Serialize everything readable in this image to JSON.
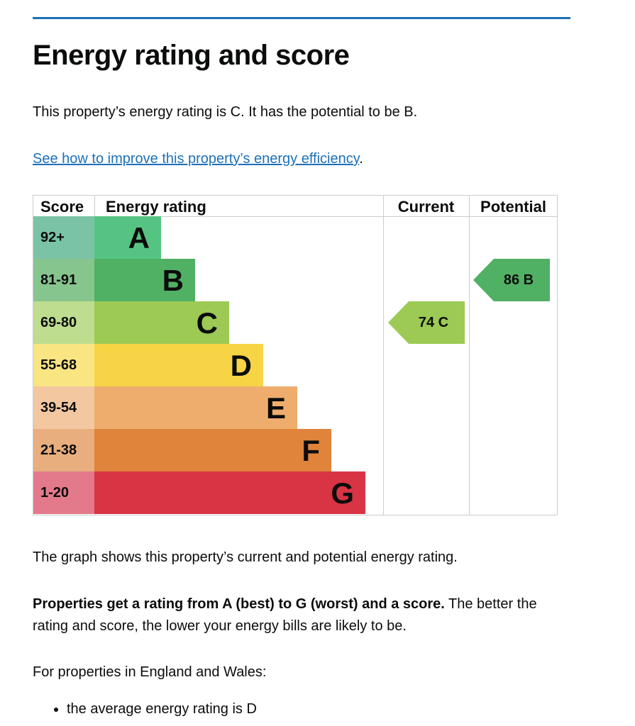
{
  "title": "Energy rating and score",
  "intro": "This property’s energy rating is C. It has the potential to be B.",
  "link_text": "See how to improve this property’s energy efficiency",
  "link_suffix": ".",
  "graph": {
    "headers": {
      "score": "Score",
      "rating": "Energy rating",
      "current": "Current",
      "potential": "Potential"
    },
    "bands": [
      {
        "letter": "A",
        "score": "92+",
        "color": "#55c483",
        "score_bg": "#7ac3a6"
      },
      {
        "letter": "B",
        "score": "81-91",
        "color": "#50b063",
        "score_bg": "#86c58e"
      },
      {
        "letter": "C",
        "score": "69-80",
        "color": "#9cca55",
        "score_bg": "#bedd8f"
      },
      {
        "letter": "D",
        "score": "55-68",
        "color": "#f7d445",
        "score_bg": "#fae583"
      },
      {
        "letter": "E",
        "score": "39-54",
        "color": "#eead6c",
        "score_bg": "#f3c8a1"
      },
      {
        "letter": "F",
        "score": "21-38",
        "color": "#e0833b",
        "score_bg": "#e8ae7e"
      },
      {
        "letter": "G",
        "score": "1-20",
        "color": "#d93444",
        "score_bg": "#e37a8b"
      }
    ],
    "current": {
      "score": 74,
      "letter": "C",
      "label": "74  C"
    },
    "potential": {
      "score": 86,
      "letter": "B",
      "label": "86  B"
    }
  },
  "graph_caption": "The graph shows this property’s current and potential energy rating.",
  "bold_text": "Properties get a rating from A (best) to G (worst) and a score.",
  "after_bold": " The better the rating and score, the lower your energy bills are likely to be.",
  "region_text": "For properties in England and Wales:",
  "bullets": [
    "the average energy rating is D"
  ]
}
